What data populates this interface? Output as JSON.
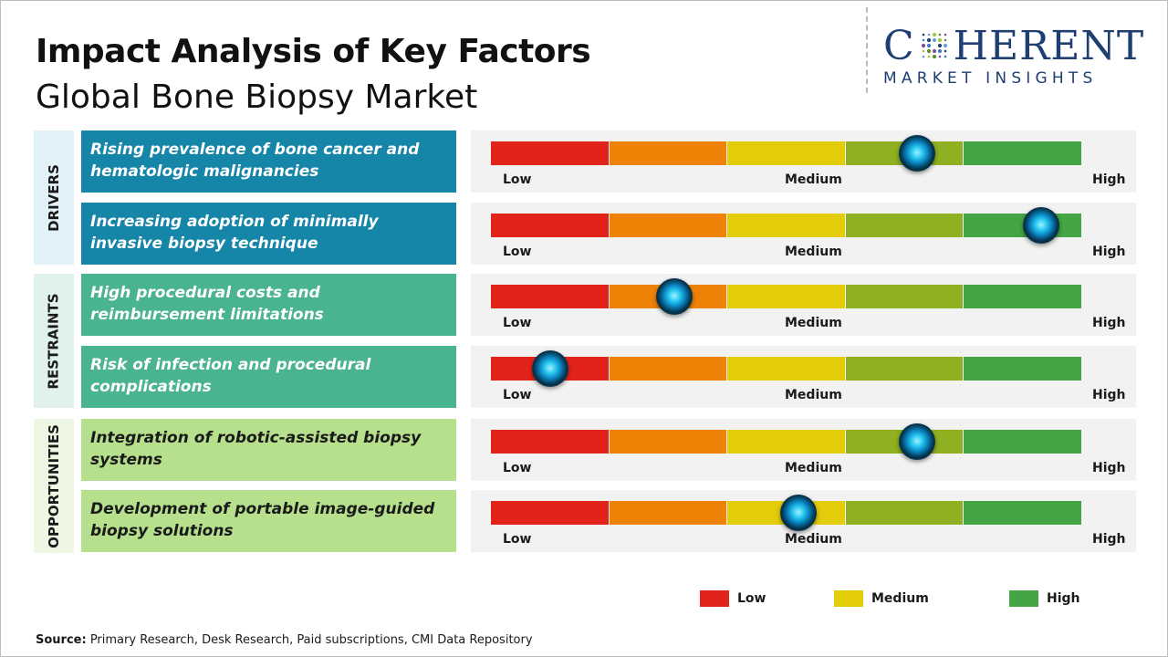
{
  "header": {
    "title": "Impact Analysis of Key Factors",
    "subtitle": "Global Bone Biopsy Market"
  },
  "logo": {
    "top": "COHERENT",
    "top_pre": "C",
    "top_post": "HERENT",
    "bottom": "MARKET INSIGHTS"
  },
  "chart_data": {
    "type": "table",
    "title": "Impact Analysis of Key Factors",
    "subtitle": "Global Bone Biopsy Market",
    "scale_labels": [
      "Low",
      "Medium",
      "High"
    ],
    "scale_segment_colors": [
      "#e2231a",
      "#ee8206",
      "#e3cc0a",
      "#8fb021",
      "#44a544"
    ],
    "categories": [
      {
        "name": "DRIVERS",
        "color": "#1585a8",
        "factors": [
          {
            "label": "Rising prevalence of bone cancer and hematologic malignancies",
            "impact": 0.72
          },
          {
            "label": "Increasing adoption of minimally invasive biopsy technique",
            "impact": 0.93
          }
        ]
      },
      {
        "name": "RESTRAINTS",
        "color": "#4ab391",
        "factors": [
          {
            "label": "High procedural costs and reimbursement limitations",
            "impact": 0.31
          },
          {
            "label": "Risk of infection and procedural complications",
            "impact": 0.1
          }
        ]
      },
      {
        "name": "OPPORTUNITIES",
        "color": "#b6e08c",
        "factors": [
          {
            "label": "Integration of robotic-assisted biopsy systems",
            "impact": 0.72
          },
          {
            "label": "Development of portable image-guided biopsy solutions",
            "impact": 0.52
          }
        ]
      }
    ],
    "legend": [
      {
        "label": "Low",
        "color": "#e2231a"
      },
      {
        "label": "Medium",
        "color": "#e3cc0a"
      },
      {
        "label": "High",
        "color": "#44a544"
      }
    ],
    "legend_position": "bottom-right"
  },
  "source": {
    "label": "Source:",
    "text": " Primary Research, Desk Research, Paid subscriptions, CMI Data Repository"
  }
}
